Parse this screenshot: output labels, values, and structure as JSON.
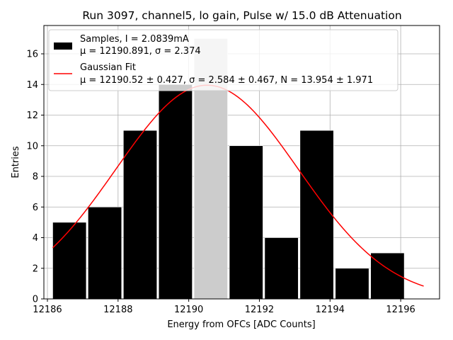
{
  "chart_data": {
    "type": "bar",
    "title": "Run 3097, channel5, lo gain, Pulse w/ 15.0 dB Attenuation",
    "xlabel": "Energy from OFCs [ADC Counts]",
    "ylabel": "Entries",
    "xlim": [
      12185.9,
      12197.1
    ],
    "ylim": [
      0,
      17.85
    ],
    "xticks": [
      12186,
      12188,
      12190,
      12192,
      12194,
      12196
    ],
    "yticks": [
      0,
      2,
      4,
      6,
      8,
      10,
      12,
      14,
      16
    ],
    "grid": true,
    "legend_position": "top-left",
    "histogram": {
      "name": "Samples, I = 2.0839mA",
      "stats": "μ = 12190.891, σ = 2.374",
      "bin_edges": [
        12186.15,
        12187.15,
        12188.15,
        12189.15,
        12190.15,
        12191.15,
        12192.15,
        12193.15,
        12194.15,
        12195.15,
        12196.15
      ],
      "counts": [
        5,
        6,
        11,
        14,
        17,
        10,
        4,
        11,
        2,
        3
      ],
      "bar_width": 0.95,
      "color": "#000000",
      "highlight_color": "#cccccc"
    },
    "fit": {
      "name": "Gaussian Fit",
      "stats": "μ = 12190.52 ± 0.427, σ = 2.584 ± 0.467, N = 13.954 ± 1.971",
      "mu": 12190.52,
      "sigma": 2.584,
      "N": 13.954,
      "x_range": [
        12186.15,
        12196.65
      ],
      "color": "#ff0000"
    }
  }
}
